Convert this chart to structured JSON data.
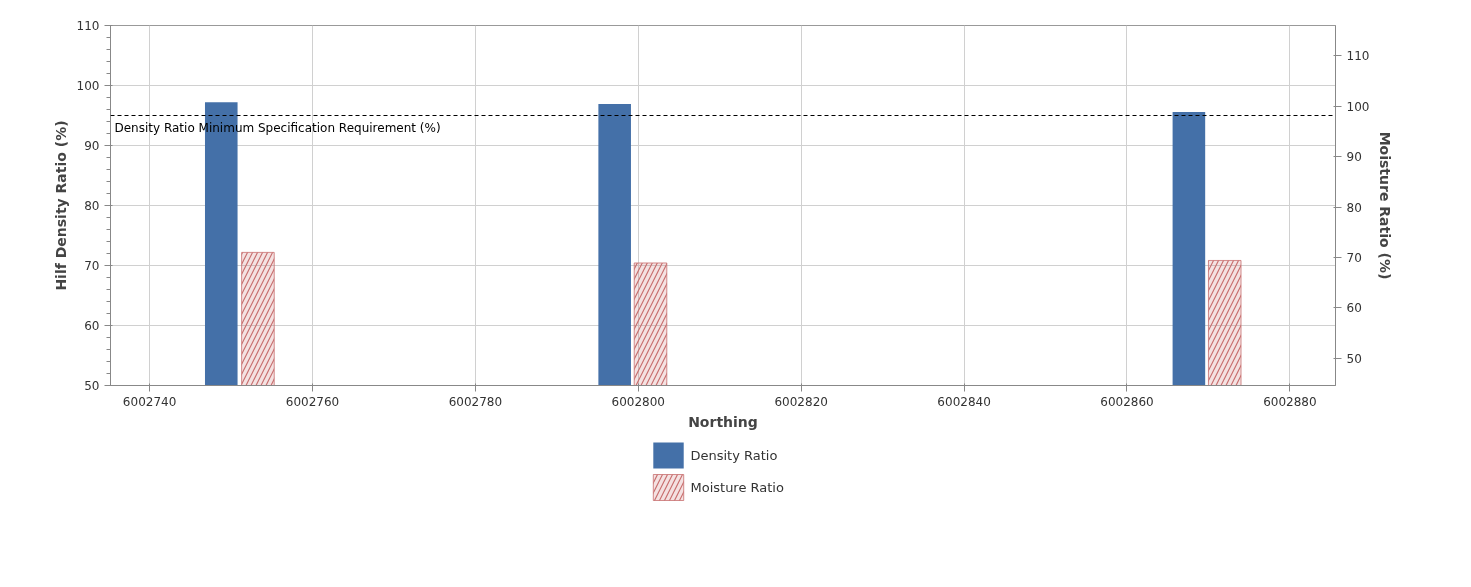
{
  "chart_data": {
    "type": "bar",
    "xlabel": "Northing",
    "ylabel": "Hilf Density Ratio (%)",
    "y2label": "Moisture Ratio (%)",
    "xlim": [
      6002735.2,
      6002885.6
    ],
    "xticks": [
      6002740,
      6002760,
      6002780,
      6002800,
      6002820,
      6002840,
      6002860,
      6002880
    ],
    "ylim": [
      50,
      110
    ],
    "yticks": [
      50,
      60,
      70,
      80,
      90,
      100,
      110
    ],
    "y2lim": [
      44.6,
      116
    ],
    "y2ticks": [
      50,
      60,
      70,
      80,
      90,
      100,
      110
    ],
    "series": [
      {
        "name": "Density Ratio",
        "color": "#4470a8",
        "x": [
          6002748.8,
          6002797.1,
          6002867.6
        ],
        "values": [
          97.2,
          96.9,
          95.6
        ]
      },
      {
        "name": "Moisture Ratio",
        "color": "#c87070",
        "axis": "y2",
        "x": [
          6002753.3,
          6002801.5,
          6002872.0
        ],
        "values": [
          71.0,
          68.9,
          69.4
        ]
      }
    ],
    "ref_lines": [
      {
        "axis": "y",
        "value": 95,
        "label": "Density Ratio Minimum Specification Requirement (%)",
        "color": "#000000",
        "line_style": "dashed"
      }
    ],
    "grid": true,
    "legend": "bottom"
  }
}
